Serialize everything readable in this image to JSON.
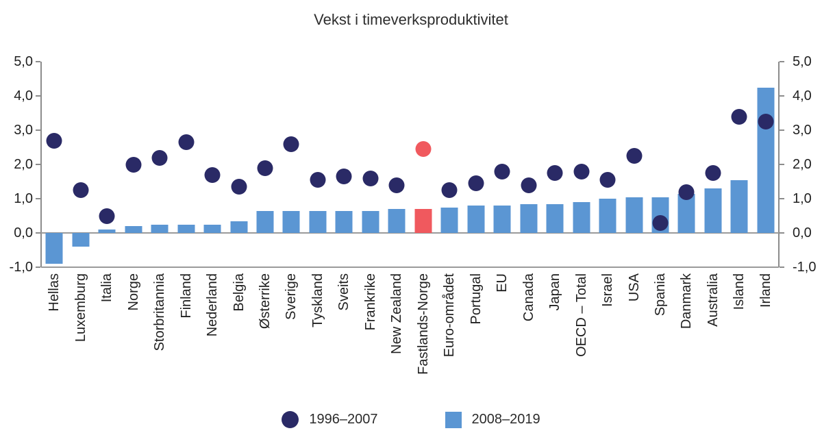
{
  "title": "Vekst i timeverksproduktivitet",
  "colors": {
    "dot": "#2A2A66",
    "bar": "#5B96D3",
    "highlight": "#F0595E",
    "axis_line": "#8C8C8C",
    "grid_line": "#9A9A9A",
    "text": "#1F1F1F"
  },
  "legend": {
    "items": [
      {
        "label": "1996–2007",
        "marker": "circle",
        "series": "dots"
      },
      {
        "label": "2008–2019",
        "marker": "square",
        "series": "bars"
      }
    ]
  },
  "chart_data": {
    "type": "bar",
    "title": "Vekst i timeverksproduktivitet",
    "xlabel": "",
    "ylabel": "",
    "ylim": [
      -1.0,
      5.0
    ],
    "grid": false,
    "legend_position": "bottom",
    "y_ticks": {
      "labels": [
        "5,0",
        "4,0",
        "3,0",
        "2,0",
        "1,0",
        "0,0",
        "-1,0"
      ],
      "values": [
        5,
        4,
        3,
        2,
        1,
        0,
        -1
      ]
    },
    "categories": [
      "Hellas",
      "Luxemburg",
      "Italia",
      "Norge",
      "Storbritannia",
      "Finland",
      "Nederland",
      "Belgia",
      "Østerrike",
      "Sverige",
      "Tyskland",
      "Sveits",
      "Frankrike",
      "New Zealand",
      "Fastlands-Norge",
      "Euro-området",
      "Portugal",
      "EU",
      "Canada",
      "Japan",
      "OECD – Total",
      "Israel",
      "USA",
      "Spania",
      "Danmark",
      "Australia",
      "Island",
      "Irland"
    ],
    "highlight_category": "Fastlands-Norge",
    "series": [
      {
        "name": "1996–2007",
        "type": "scatter",
        "values": [
          2.7,
          1.25,
          0.5,
          2.0,
          2.2,
          2.65,
          1.7,
          1.35,
          1.9,
          2.6,
          1.55,
          1.65,
          1.6,
          1.4,
          2.45,
          1.25,
          1.45,
          1.8,
          1.4,
          1.75,
          1.8,
          1.55,
          2.25,
          0.3,
          1.2,
          1.75,
          3.4,
          3.25
        ]
      },
      {
        "name": "2008–2019",
        "type": "bar",
        "values": [
          -0.9,
          -0.4,
          0.1,
          0.2,
          0.25,
          0.25,
          0.25,
          0.35,
          0.65,
          0.65,
          0.65,
          0.65,
          0.65,
          0.7,
          0.7,
          0.75,
          0.8,
          0.8,
          0.85,
          0.85,
          0.9,
          1.0,
          1.05,
          1.05,
          1.15,
          1.3,
          1.55,
          4.25
        ]
      }
    ]
  }
}
